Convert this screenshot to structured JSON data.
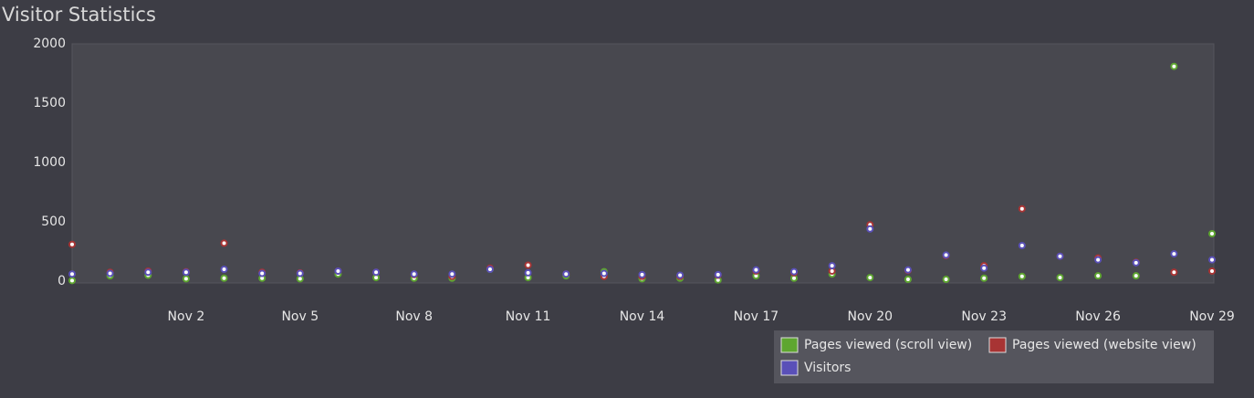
{
  "chart_data": {
    "type": "line",
    "title": "Visitor Statistics",
    "categories": [
      null,
      null,
      null,
      "Nov 2",
      null,
      null,
      "Nov 5",
      null,
      null,
      "Nov 8",
      null,
      null,
      "Nov 11",
      null,
      null,
      "Nov 14",
      null,
      null,
      "Nov 17",
      null,
      null,
      "Nov 20",
      null,
      null,
      "Nov 23",
      null,
      null,
      "Nov 26",
      null,
      null,
      "Nov 29"
    ],
    "series": [
      {
        "name": "Pages viewed (scroll view)",
        "color": "#5ea630",
        "values": [
          5,
          45,
          50,
          20,
          25,
          25,
          20,
          60,
          30,
          25,
          25,
          100,
          30,
          45,
          80,
          20,
          25,
          10,
          45,
          25,
          60,
          30,
          15,
          15,
          25,
          40,
          30,
          45,
          45,
          1810,
          400
        ]
      },
      {
        "name": "Pages viewed (website view)",
        "color": "#a83434",
        "values": [
          310,
          75,
          85,
          80,
          320,
          75,
          70,
          85,
          75,
          55,
          40,
          110,
          135,
          60,
          40,
          40,
          40,
          50,
          85,
          70,
          85,
          475,
          90,
          215,
          130,
          610,
          210,
          195,
          160,
          75,
          85
        ]
      },
      {
        "name": "Visitors",
        "color": "#5a50b8",
        "values": [
          60,
          65,
          75,
          75,
          100,
          65,
          65,
          85,
          75,
          60,
          60,
          100,
          70,
          60,
          65,
          55,
          50,
          55,
          95,
          80,
          130,
          440,
          95,
          220,
          110,
          300,
          210,
          180,
          155,
          230,
          180
        ]
      }
    ],
    "ylim": [
      0,
      2000
    ],
    "yticks": [
      0,
      500,
      1000,
      1500,
      2000
    ],
    "grid": false,
    "legend": "bottom-right"
  }
}
